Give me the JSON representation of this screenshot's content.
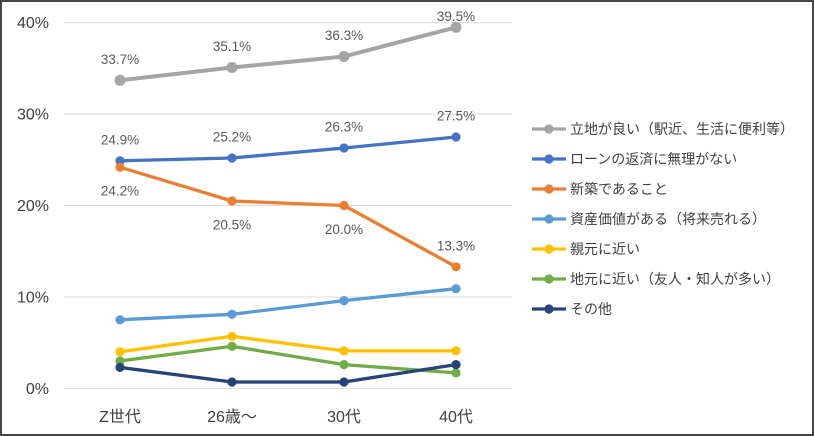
{
  "chart": {
    "background_color": "#ffffff",
    "border_color": "#464646",
    "gridline_color": "#D9D9D9",
    "axis_text_color": "#404040",
    "data_label_color": "#595959"
  },
  "chart_data": {
    "type": "line",
    "title": "",
    "xlabel": "",
    "ylabel": "",
    "categories": [
      "Z世代",
      "26歳～",
      "30代",
      "40代"
    ],
    "ylim": [
      0,
      40
    ],
    "yticks": [
      0,
      10,
      20,
      30,
      40
    ],
    "ytick_labels": [
      "0%",
      "10%",
      "20%",
      "30%",
      "40%"
    ],
    "grid": true,
    "legend_position": "right",
    "series": [
      {
        "name": "立地が良い（駅近、生活に便利等）",
        "color": "#A5A5A5",
        "values": [
          33.7,
          35.1,
          36.3,
          39.5
        ],
        "data_labels": [
          "33.7%",
          "35.1%",
          "36.3%",
          "39.5%"
        ],
        "label_positions": [
          "above",
          "above",
          "above",
          "above"
        ]
      },
      {
        "name": "ローンの返済に無理がない",
        "color": "#4472C4",
        "values": [
          24.9,
          25.2,
          26.3,
          27.5
        ],
        "data_labels": [
          "24.9%",
          "25.2%",
          "26.3%",
          "27.5%"
        ],
        "label_positions": [
          "above",
          "above",
          "above",
          "above"
        ]
      },
      {
        "name": "新築であること",
        "color": "#ED7D31",
        "values": [
          24.2,
          20.5,
          20.0,
          13.3
        ],
        "data_labels": [
          "24.2%",
          "20.5%",
          "20.0%",
          "13.3%"
        ],
        "label_positions": [
          "below",
          "below",
          "below",
          "above"
        ]
      },
      {
        "name": "資産価値がある（将来売れる）",
        "color": "#5B9BD5",
        "values": [
          7.5,
          8.1,
          9.6,
          10.9
        ]
      },
      {
        "name": "親元に近い",
        "color": "#FFC000",
        "values": [
          4.0,
          5.7,
          4.1,
          4.1
        ]
      },
      {
        "name": "地元に近い（友人・知人が多い）",
        "color": "#70AD47",
        "values": [
          3.0,
          4.6,
          2.6,
          1.7
        ]
      },
      {
        "name": "その他",
        "color": "#264478",
        "values": [
          2.3,
          0.7,
          0.7,
          2.6
        ]
      }
    ]
  }
}
